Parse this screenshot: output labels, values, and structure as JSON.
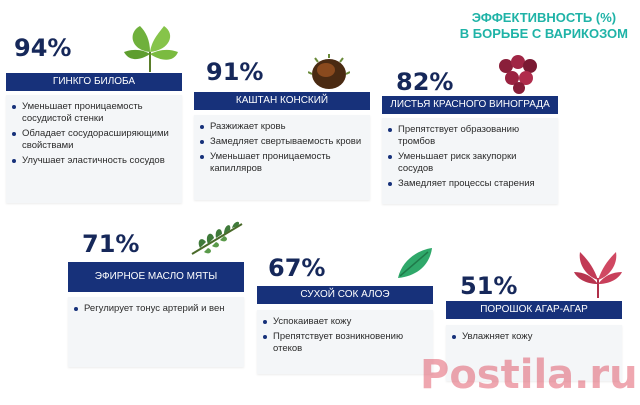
{
  "heading": {
    "line1": "ЭФФЕКТИВНОСТЬ (%)",
    "line2": "В БОРЬБЕ С ВАРИКОЗОМ"
  },
  "cards": [
    {
      "percent": "94%",
      "title": "ГИНКГО БИЛОБА",
      "icon": "ginkgo-leaf-icon",
      "items": [
        "Уменьшает проницаемость сосудистой стенки",
        "Обладает сосудорасширяющими свойствами",
        "Улучшает эластичность сосудов"
      ]
    },
    {
      "percent": "91%",
      "title": "КАШТАН КОНСКИЙ",
      "icon": "chestnut-icon",
      "items": [
        "Разжижает кровь",
        "Замедляет свертываемость крови",
        "Уменьшает проницаемость капилляров"
      ]
    },
    {
      "percent": "82%",
      "title": "ЛИСТЬЯ КРАСНОГО ВИНОГРАДА",
      "icon": "red-grapes-icon",
      "items": [
        "Препятствует образованию тромбов",
        "Уменьшает риск закупорки сосудов",
        "Замедляет процессы старения"
      ]
    },
    {
      "percent": "71%",
      "title": "ЭФИРНОЕ МАСЛО МЯТЫ",
      "icon": "mint-sprig-icon",
      "items": [
        "Регулирует тонус артерий и вен"
      ]
    },
    {
      "percent": "67%",
      "title": "СУХОЙ СОК АЛОЭ",
      "icon": "aloe-leaf-icon",
      "items": [
        "Успокаивает кожу",
        "Препятствует возникновению отеков"
      ]
    },
    {
      "percent": "51%",
      "title": "ПОРОШОК АГАР-АГАР",
      "icon": "red-seaweed-icon",
      "items": [
        "Увлажняет кожу"
      ]
    }
  ],
  "watermark": "Postila.ru",
  "colors": {
    "accent": "#1fb3a7",
    "band": "#17317a",
    "percent": "#16285a"
  }
}
